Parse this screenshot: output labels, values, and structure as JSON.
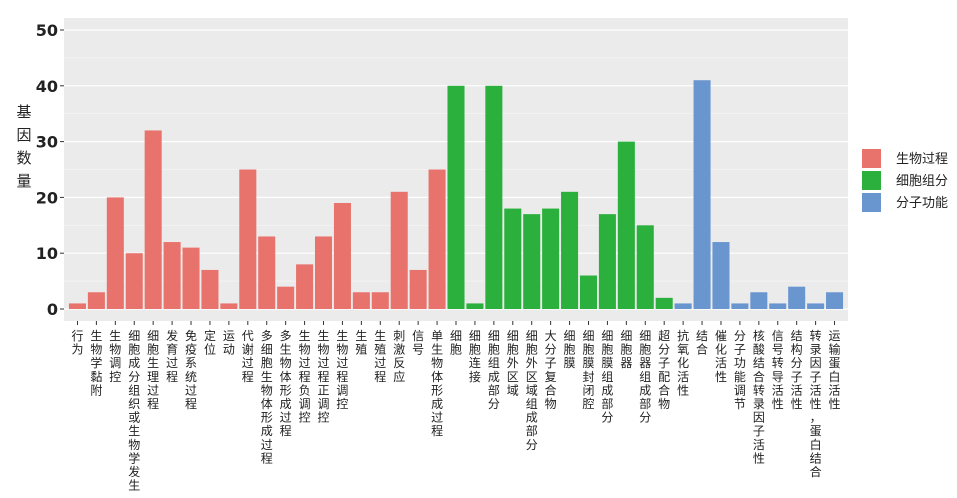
{
  "chart_data": {
    "type": "bar",
    "ylabel": "基因数量",
    "ylim": [
      0,
      50
    ],
    "yticks": [
      0,
      10,
      20,
      30,
      40,
      50
    ],
    "grid": true,
    "legend_position": "right",
    "groups": [
      {
        "name": "生物过程",
        "color": "#E8736C"
      },
      {
        "name": "细胞组分",
        "color": "#2BB03E"
      },
      {
        "name": "分子功能",
        "color": "#6A96D0"
      }
    ],
    "bars": [
      {
        "category": "行为",
        "value": 1,
        "group": 0
      },
      {
        "category": "生物学黏附",
        "value": 3,
        "group": 0
      },
      {
        "category": "生物调控",
        "value": 20,
        "group": 0
      },
      {
        "category": "细胞成分组织或生物学发生",
        "value": 10,
        "group": 0
      },
      {
        "category": "细胞生理过程",
        "value": 32,
        "group": 0
      },
      {
        "category": "发育过程",
        "value": 12,
        "group": 0
      },
      {
        "category": "免疫系统过程",
        "value": 11,
        "group": 0
      },
      {
        "category": "定位",
        "value": 7,
        "group": 0
      },
      {
        "category": "运动",
        "value": 1,
        "group": 0
      },
      {
        "category": "代谢过程",
        "value": 25,
        "group": 0
      },
      {
        "category": "多细胞生物体形成过程",
        "value": 13,
        "group": 0
      },
      {
        "category": "多生物体形成过程",
        "value": 4,
        "group": 0
      },
      {
        "category": "生物过程负调控",
        "value": 8,
        "group": 0
      },
      {
        "category": "生物过程正调控",
        "value": 13,
        "group": 0
      },
      {
        "category": "生物过程调控",
        "value": 19,
        "group": 0
      },
      {
        "category": "生殖",
        "value": 3,
        "group": 0
      },
      {
        "category": "生殖过程",
        "value": 3,
        "group": 0
      },
      {
        "category": "刺激反应",
        "value": 21,
        "group": 0
      },
      {
        "category": "信号",
        "value": 7,
        "group": 0
      },
      {
        "category": "单生物体形成过程",
        "value": 25,
        "group": 0
      },
      {
        "category": "细胞",
        "value": 40,
        "group": 1
      },
      {
        "category": "细胞连接",
        "value": 1,
        "group": 1
      },
      {
        "category": "细胞组成部分",
        "value": 40,
        "group": 1
      },
      {
        "category": "细胞外区域",
        "value": 18,
        "group": 1
      },
      {
        "category": "细胞外区域组成部分",
        "value": 17,
        "group": 1
      },
      {
        "category": "大分子复合物",
        "value": 18,
        "group": 1
      },
      {
        "category": "细胞膜",
        "value": 21,
        "group": 1
      },
      {
        "category": "细胞膜封闭腔",
        "value": 6,
        "group": 1
      },
      {
        "category": "细胞膜组成部分",
        "value": 17,
        "group": 1
      },
      {
        "category": "细胞器",
        "value": 30,
        "group": 1
      },
      {
        "category": "细胞器组成部分",
        "value": 15,
        "group": 1
      },
      {
        "category": "超分子配合物",
        "value": 2,
        "group": 1
      },
      {
        "category": "抗氧化活性",
        "value": 1,
        "group": 2
      },
      {
        "category": "结合",
        "value": 41,
        "group": 2
      },
      {
        "category": "催化活性",
        "value": 12,
        "group": 2
      },
      {
        "category": "分子功能调节",
        "value": 1,
        "group": 2
      },
      {
        "category": "核酸结合转录因子活性",
        "value": 3,
        "group": 2
      },
      {
        "category": "信号转导活性",
        "value": 1,
        "group": 2
      },
      {
        "category": "结构分子活性",
        "value": 4,
        "group": 2
      },
      {
        "category": "转录因子活性，蛋白结合",
        "value": 1,
        "group": 2
      },
      {
        "category": "运输蛋白活性",
        "value": 3,
        "group": 2
      }
    ]
  }
}
